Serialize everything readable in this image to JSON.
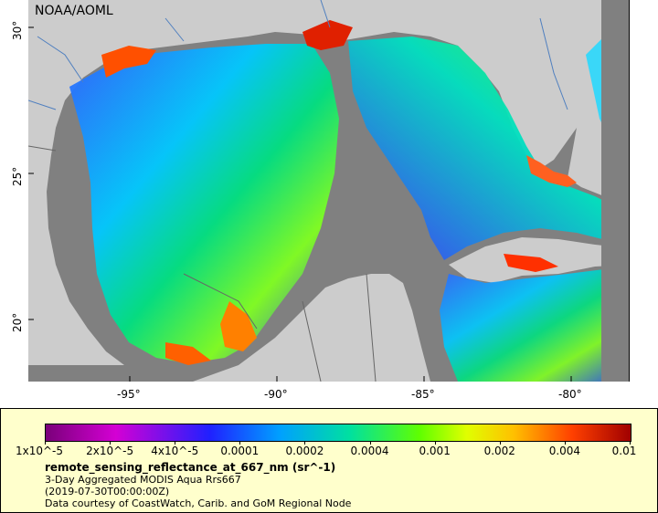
{
  "map": {
    "credit": "NOAA/AOML",
    "x_ticks": [
      "-95°",
      "-90°",
      "-85°",
      "-80°"
    ],
    "y_ticks": [
      "30°",
      "25°",
      "20°"
    ],
    "colors": {
      "land": "#cccccc",
      "no_data": "#808080",
      "borders": "#666666",
      "rivers": "#4f7fbf"
    }
  },
  "legend": {
    "ticks": [
      "1x10^-5",
      "2x10^-5",
      "4x10^-5",
      "0.0001",
      "0.0002",
      "0.0004",
      "0.001",
      "0.002",
      "0.004",
      "0.01"
    ],
    "variable": "remote_sensing_reflectance_at_667_nm (sr^-1)",
    "dataset": "3-Day Aggregated MODIS Aqua Rrs667",
    "time": "(2019-07-30T00:00:00Z)",
    "courtesy": "Data courtesy of CoastWatch, Carib. and GoM Regional Node"
  }
}
